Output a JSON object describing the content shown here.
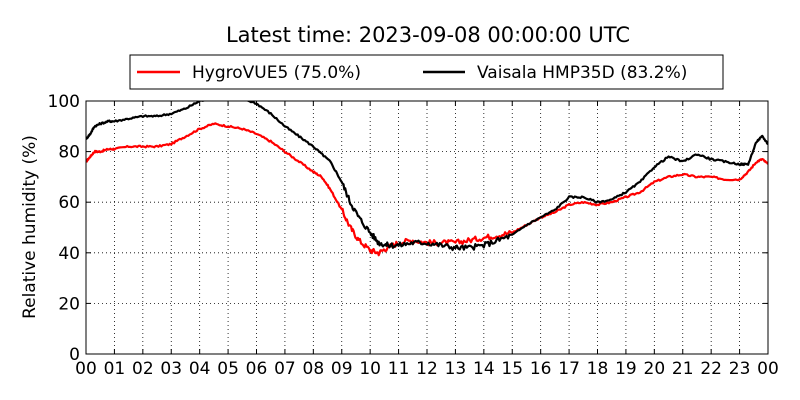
{
  "chart_data": {
    "type": "line",
    "title": "Latest time: 2023-09-08 00:00:00 UTC",
    "xlabel": "",
    "ylabel": "Relative humidity (%)",
    "xlim": [
      0,
      24
    ],
    "ylim": [
      0,
      100
    ],
    "grid": true,
    "grid_style": "dotted",
    "legend_position": "top-center",
    "x_ticks": [
      0,
      1,
      2,
      3,
      4,
      5,
      6,
      7,
      8,
      9,
      10,
      11,
      12,
      13,
      14,
      15,
      16,
      17,
      18,
      19,
      20,
      21,
      22,
      23,
      24
    ],
    "x_tick_labels": [
      "00",
      "01",
      "02",
      "03",
      "04",
      "05",
      "06",
      "07",
      "08",
      "09",
      "10",
      "11",
      "12",
      "13",
      "14",
      "15",
      "16",
      "17",
      "18",
      "19",
      "20",
      "21",
      "22",
      "23",
      "00"
    ],
    "y_ticks": [
      0,
      20,
      40,
      60,
      80,
      100
    ],
    "y_tick_labels": [
      "0",
      "20",
      "40",
      "60",
      "80",
      "100"
    ],
    "series": [
      {
        "name": "HygroVUE5 (75.0%)",
        "color": "#ff0000",
        "x": [
          0,
          0.15,
          0.3,
          0.5,
          0.8,
          1.0,
          1.5,
          2.0,
          2.5,
          3.0,
          3.5,
          4.0,
          4.5,
          5.0,
          5.5,
          6.0,
          6.5,
          7.0,
          7.5,
          8.0,
          8.3,
          8.6,
          9.0,
          9.3,
          9.6,
          10.0,
          10.3,
          10.6,
          11.0,
          11.5,
          12.0,
          12.5,
          13.0,
          13.5,
          14.0,
          14.5,
          15.0,
          15.5,
          16.0,
          16.5,
          17.0,
          17.5,
          18.0,
          18.5,
          19.0,
          19.5,
          20.0,
          20.5,
          21.0,
          21.5,
          22.0,
          22.5,
          23.0,
          23.3,
          23.6,
          23.8,
          24.0
        ],
        "y": [
          76,
          78,
          80,
          80,
          81,
          81,
          82,
          82,
          82,
          83,
          86,
          89,
          91,
          90,
          89,
          87,
          84,
          80,
          76,
          72,
          70,
          65,
          57,
          50,
          45,
          41,
          40,
          42,
          44,
          45,
          44,
          44,
          44,
          45,
          46,
          47,
          48,
          51,
          54,
          56,
          59,
          60,
          59,
          60,
          62,
          64,
          68,
          70,
          71,
          70,
          70,
          69,
          69,
          72,
          76,
          77,
          75
        ]
      },
      {
        "name": "Vaisala HMP35D (83.2%)",
        "color": "#000000",
        "x": [
          0,
          0.15,
          0.3,
          0.5,
          0.8,
          1.0,
          1.5,
          2.0,
          2.5,
          3.0,
          3.5,
          4.0,
          4.5,
          5.0,
          5.5,
          6.0,
          6.5,
          7.0,
          7.5,
          8.0,
          8.3,
          8.6,
          9.0,
          9.3,
          9.6,
          10.0,
          10.3,
          10.6,
          11.0,
          11.5,
          12.0,
          12.5,
          13.0,
          13.5,
          14.0,
          14.5,
          15.0,
          15.5,
          16.0,
          16.5,
          17.0,
          17.5,
          18.0,
          18.5,
          19.0,
          19.5,
          20.0,
          20.5,
          21.0,
          21.5,
          22.0,
          22.5,
          23.0,
          23.3,
          23.6,
          23.8,
          24.0
        ],
        "y": [
          85,
          87,
          90,
          91,
          92,
          92,
          93,
          94,
          94,
          95,
          97,
          100,
          101,
          101,
          101,
          99,
          95,
          90,
          86,
          82,
          79,
          76,
          68,
          60,
          54,
          48,
          44,
          43,
          43,
          44,
          44,
          43,
          42,
          42,
          43,
          45,
          47,
          51,
          54,
          57,
          62,
          62,
          60,
          61,
          64,
          68,
          74,
          78,
          76,
          79,
          77,
          76,
          75,
          75,
          84,
          86,
          83
        ]
      }
    ]
  }
}
